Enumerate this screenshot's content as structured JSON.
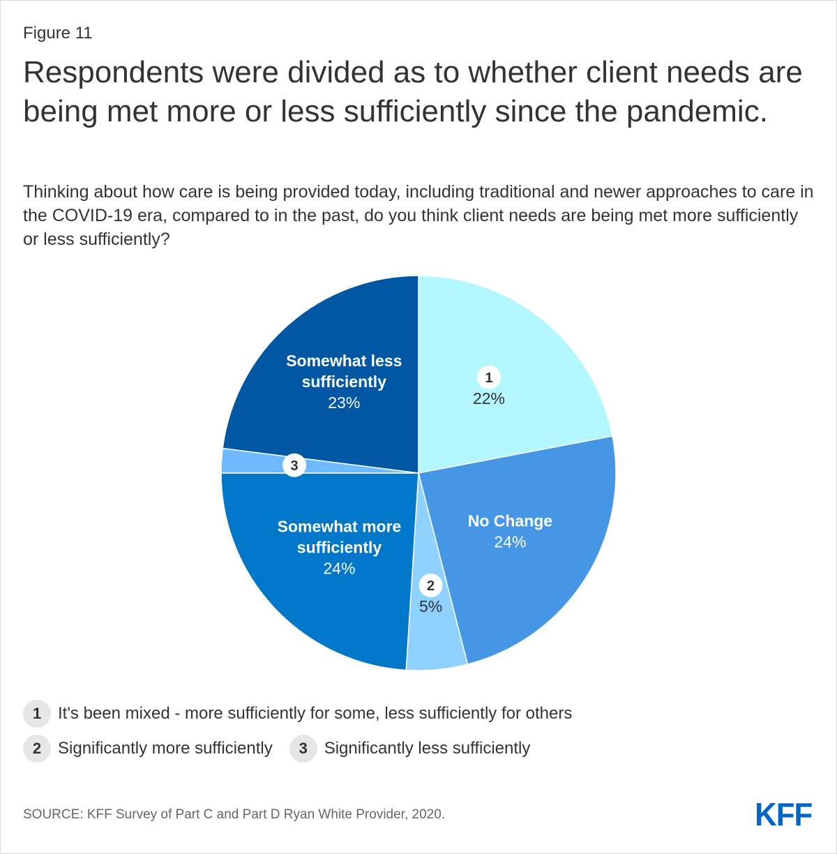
{
  "figure_label": "Figure 11",
  "title": "Respondents were divided as to whether client needs are being met more or less sufficiently since the pandemic.",
  "subtitle": "Thinking about how care is being provided today, including traditional and newer approaches to care in the COVID-19 era, compared to in the past, do you think client needs are being met more sufficiently or less sufficiently?",
  "chart_data": {
    "type": "pie",
    "slices": [
      {
        "label": "",
        "badge": "1",
        "value": 22,
        "value_label": "22%",
        "color": "#b3f7ff"
      },
      {
        "label": "No Change",
        "badge": "",
        "value": 24,
        "value_label": "24%",
        "color": "#4597e6"
      },
      {
        "label": "",
        "badge": "2",
        "value": 5,
        "value_label": "5%",
        "color": "#8fd2ff"
      },
      {
        "label": "Somewhat more sufficiently",
        "badge": "",
        "value": 24,
        "value_label": "24%",
        "color": "#0077c8"
      },
      {
        "label": "",
        "badge": "3",
        "value": 2,
        "value_label": "",
        "color": "#6eb9ff"
      },
      {
        "label": "Somewhat less sufficiently",
        "badge": "",
        "value": 23,
        "value_label": "23%",
        "color": "#0058a5"
      }
    ]
  },
  "legend": [
    {
      "badge": "1",
      "text": "It's been mixed - more sufficiently for some, less sufficiently for others"
    },
    {
      "badge": "2",
      "text": "Significantly more sufficiently"
    },
    {
      "badge": "3",
      "text": "Significantly less sufficiently"
    }
  ],
  "source": "SOURCE: KFF Survey of Part C and Part D Ryan White Provider, 2020.",
  "logo_text": "KFF"
}
